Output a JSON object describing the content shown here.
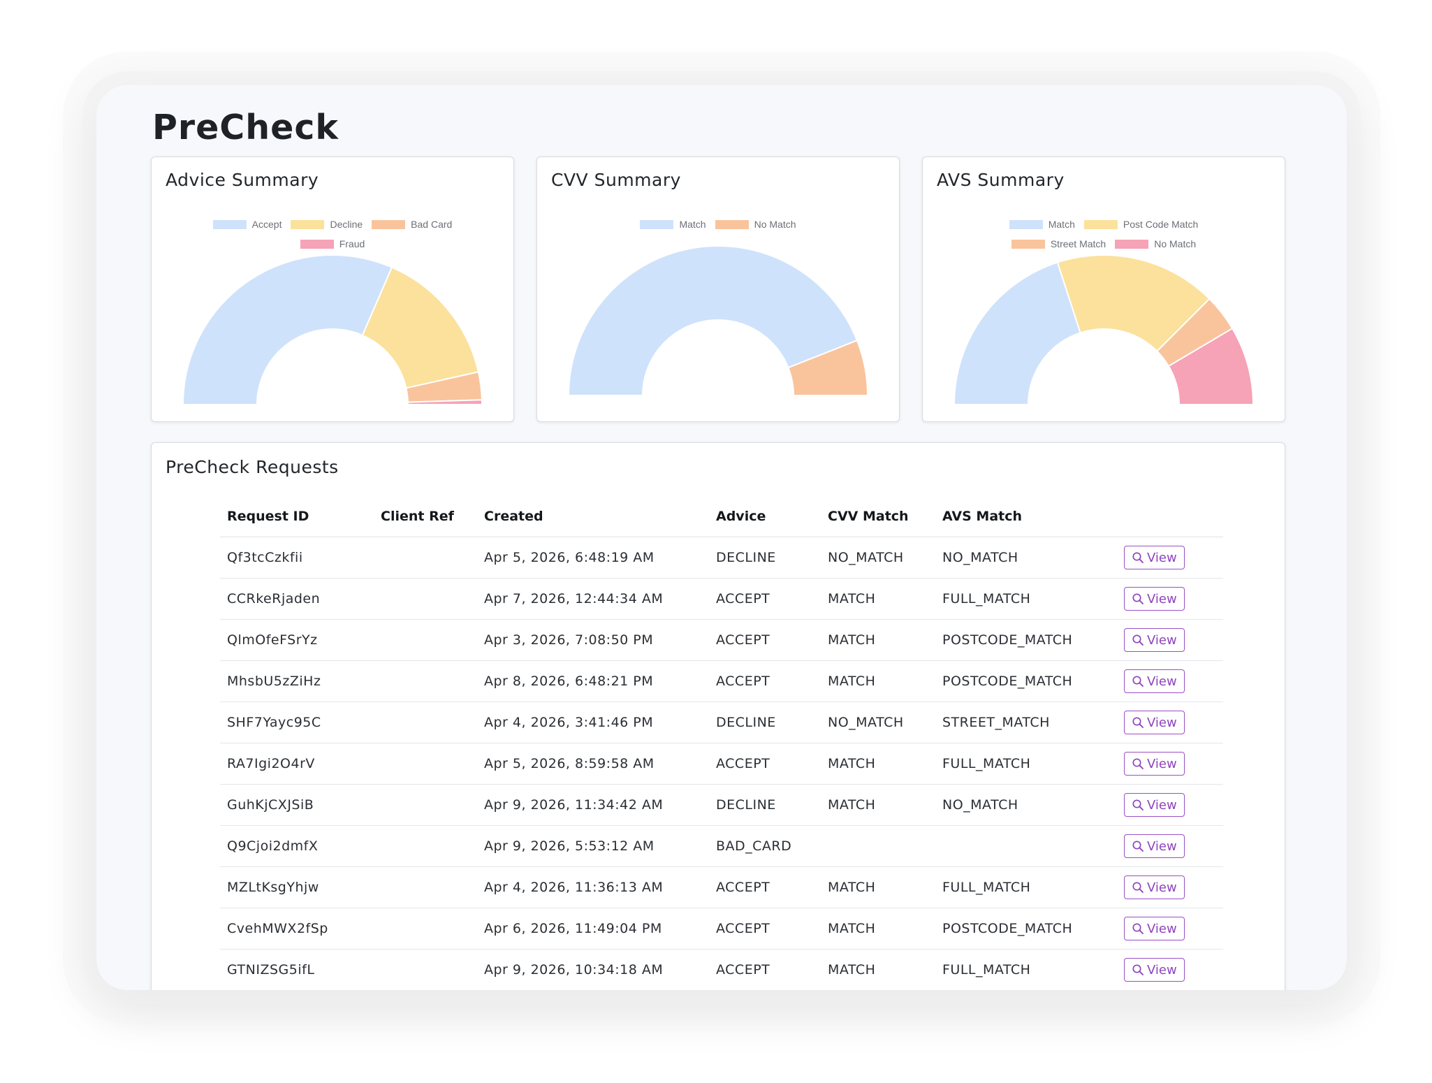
{
  "page": {
    "title": "PreCheck"
  },
  "colors": {
    "blue": "#cfe2fb",
    "yellow": "#fbe19c",
    "orange": "#f9c49c",
    "pink": "#f6a2b7",
    "accent_purple": "#8e44bd"
  },
  "cards": {
    "advice": {
      "title": "Advice Summary"
    },
    "cvv": {
      "title": "CVV Summary"
    },
    "avs": {
      "title": "AVS Summary"
    }
  },
  "chart_data": [
    {
      "type": "pie",
      "subtype": "half-doughnut",
      "title": "Advice Summary",
      "legend_position": "top",
      "categories": [
        "Accept",
        "Decline",
        "Bad Card",
        "Fraud"
      ],
      "values": [
        63,
        30,
        6,
        1
      ],
      "colors": [
        "#cfe2fb",
        "#fbe19c",
        "#f9c49c",
        "#f6a2b7"
      ]
    },
    {
      "type": "pie",
      "subtype": "half-doughnut",
      "title": "CVV Summary",
      "legend_position": "top",
      "categories": [
        "Match",
        "No Match"
      ],
      "values": [
        88,
        12
      ],
      "colors": [
        "#cfe2fb",
        "#f9c49c"
      ]
    },
    {
      "type": "pie",
      "subtype": "half-doughnut",
      "title": "AVS Summary",
      "legend_position": "top",
      "categories": [
        "Match",
        "Post Code Match",
        "Street Match",
        "No Match"
      ],
      "values": [
        40,
        35,
        8,
        17
      ],
      "colors": [
        "#cfe2fb",
        "#fbe19c",
        "#f9c49c",
        "#f6a2b7"
      ]
    }
  ],
  "requests": {
    "title": "PreCheck Requests",
    "columns": [
      "Request ID",
      "Client Ref",
      "Created",
      "Advice",
      "CVV Match",
      "AVS Match"
    ],
    "view_label": "View",
    "view_icon": "magnifier-icon",
    "rows": [
      {
        "id": "Qf3tcCzkfii",
        "client_ref": "",
        "created": "Apr 5, 2026, 6:48:19 AM",
        "advice": "DECLINE",
        "cvv": "NO_MATCH",
        "avs": "NO_MATCH"
      },
      {
        "id": "CCRkeRjaden",
        "client_ref": "",
        "created": "Apr 7, 2026, 12:44:34 AM",
        "advice": "ACCEPT",
        "cvv": "MATCH",
        "avs": "FULL_MATCH"
      },
      {
        "id": "QlmOfeFSrYz",
        "client_ref": "",
        "created": "Apr 3, 2026, 7:08:50 PM",
        "advice": "ACCEPT",
        "cvv": "MATCH",
        "avs": "POSTCODE_MATCH"
      },
      {
        "id": "MhsbU5zZiHz",
        "client_ref": "",
        "created": "Apr 8, 2026, 6:48:21 PM",
        "advice": "ACCEPT",
        "cvv": "MATCH",
        "avs": "POSTCODE_MATCH"
      },
      {
        "id": "SHF7Yayc95C",
        "client_ref": "",
        "created": "Apr 4, 2026, 3:41:46 PM",
        "advice": "DECLINE",
        "cvv": "NO_MATCH",
        "avs": "STREET_MATCH"
      },
      {
        "id": "RA7Igi2O4rV",
        "client_ref": "",
        "created": "Apr 5, 2026, 8:59:58 AM",
        "advice": "ACCEPT",
        "cvv": "MATCH",
        "avs": "FULL_MATCH"
      },
      {
        "id": "GuhKjCXJSiB",
        "client_ref": "",
        "created": "Apr 9, 2026, 11:34:42 AM",
        "advice": "DECLINE",
        "cvv": "MATCH",
        "avs": "NO_MATCH"
      },
      {
        "id": "Q9Cjoi2dmfX",
        "client_ref": "",
        "created": "Apr 9, 2026, 5:53:12 AM",
        "advice": "BAD_CARD",
        "cvv": "",
        "avs": ""
      },
      {
        "id": "MZLtKsgYhjw",
        "client_ref": "",
        "created": "Apr 4, 2026, 11:36:13 AM",
        "advice": "ACCEPT",
        "cvv": "MATCH",
        "avs": "FULL_MATCH"
      },
      {
        "id": "CvehMWX2fSp",
        "client_ref": "",
        "created": "Apr 6, 2026, 11:49:04 PM",
        "advice": "ACCEPT",
        "cvv": "MATCH",
        "avs": "POSTCODE_MATCH"
      },
      {
        "id": "GTNIZSG5ifL",
        "client_ref": "",
        "created": "Apr 9, 2026, 10:34:18 AM",
        "advice": "ACCEPT",
        "cvv": "MATCH",
        "avs": "FULL_MATCH"
      }
    ]
  }
}
